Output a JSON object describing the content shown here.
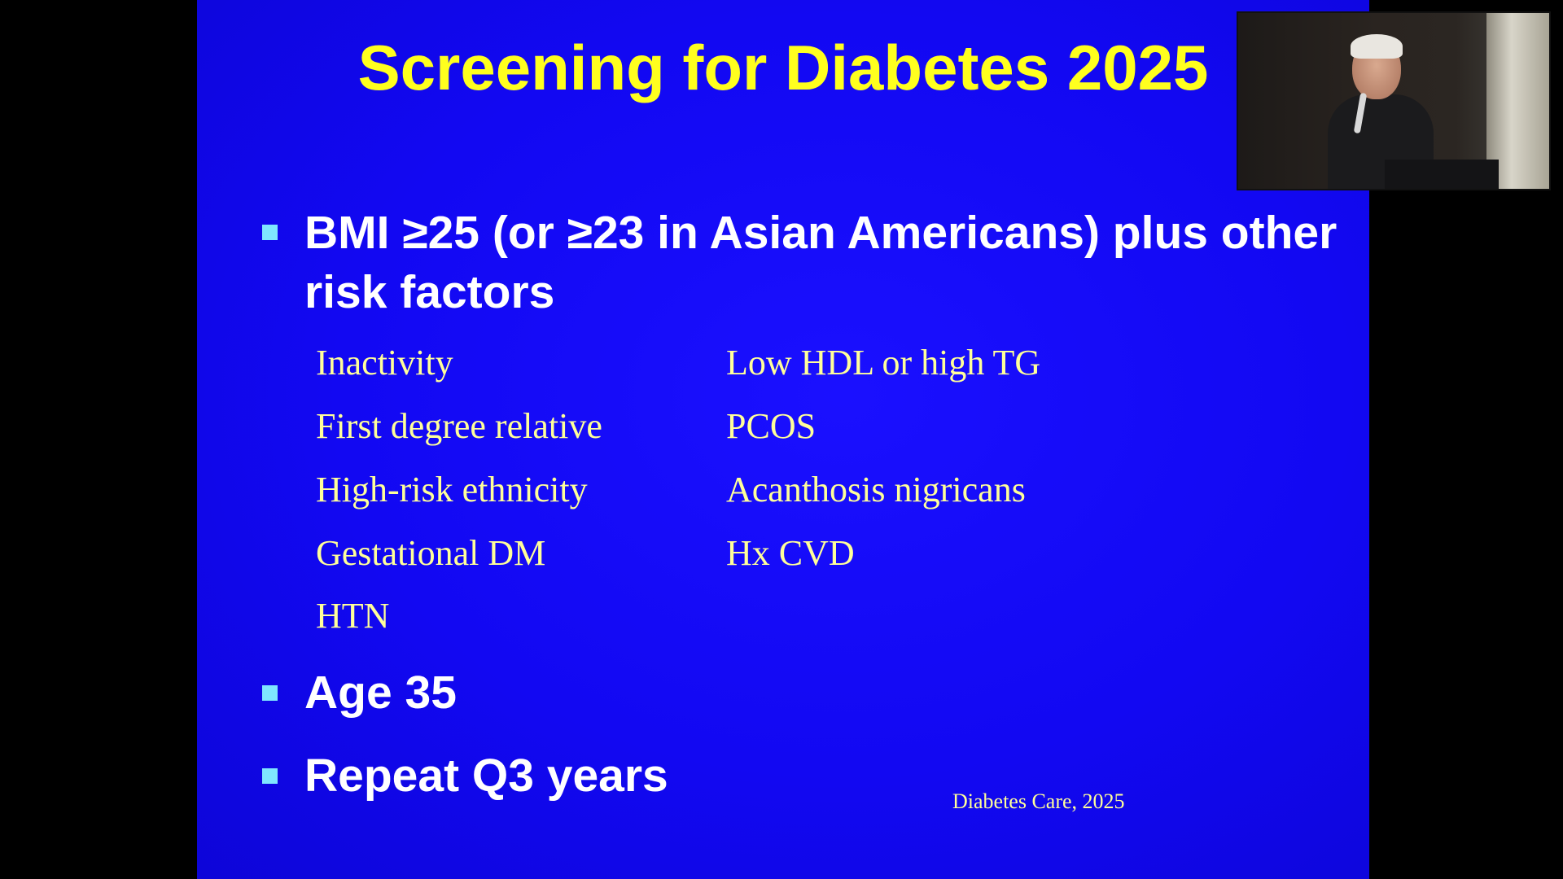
{
  "slide": {
    "title": "Screening for Diabetes 2025",
    "bullets": [
      {
        "text": "BMI ≥25 (or ≥23 in Asian Americans) plus other risk factors"
      },
      {
        "text": "Age 35"
      },
      {
        "text": "Repeat Q3 years"
      }
    ],
    "risk_factors_left": [
      "Inactivity",
      "First degree relative",
      "High-risk ethnicity",
      "Gestational DM",
      "HTN"
    ],
    "risk_factors_right": [
      "Low HDL or high TG",
      "PCOS",
      "Acanthosis nigricans",
      "Hx CVD"
    ],
    "citation": "Diabetes Care, 2025"
  },
  "colors": {
    "slide_background": "#1208f2",
    "title": "#ffff1e",
    "bullet_text": "#ffffff",
    "bullet_marker": "#7fe6ff",
    "risk_factor_text": "#ffff9a",
    "letterbox": "#000000"
  },
  "webcam": {
    "icon": "presenter-video-feed"
  }
}
